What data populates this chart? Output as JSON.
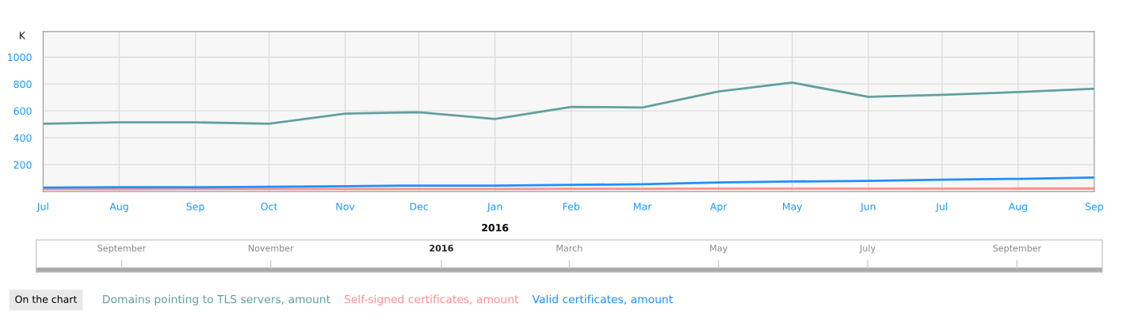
{
  "chart_data": {
    "type": "line",
    "ylabel": "K",
    "x": [
      "2015-07",
      "2015-08",
      "2015-09",
      "2015-10",
      "2015-11",
      "2015-12",
      "2016-01",
      "2016-02",
      "2016-03",
      "2016-04",
      "2016-05",
      "2016-06",
      "2016-07",
      "2016-08",
      "2016-09"
    ],
    "series": [
      {
        "name": "Domains pointing to TLS servers, amount",
        "color": "#62a0a0",
        "values": [
          505,
          515,
          515,
          505,
          580,
          590,
          540,
          630,
          625,
          745,
          810,
          705,
          720,
          740,
          765
        ]
      },
      {
        "name": "Self-signed certificates, amount",
        "color": "#ff8f8f",
        "values": [
          18,
          18,
          19,
          19,
          20,
          20,
          20,
          21,
          21,
          22,
          22,
          22,
          22,
          23,
          23
        ]
      },
      {
        "name": "Valid certificates, amount",
        "color": "#1e90ff",
        "values": [
          30,
          32,
          33,
          35,
          40,
          45,
          45,
          50,
          55,
          68,
          75,
          80,
          88,
          95,
          105
        ]
      }
    ],
    "xlim": [
      "2015-07",
      "2016-09"
    ],
    "xticks": [
      {
        "value": "2015-07",
        "label": "Jul"
      },
      {
        "value": "2015-08",
        "label": "Aug"
      },
      {
        "value": "2015-09",
        "label": "Sep"
      },
      {
        "value": "2015-10",
        "label": "Oct"
      },
      {
        "value": "2015-11",
        "label": "Nov"
      },
      {
        "value": "2015-12",
        "label": "Dec"
      },
      {
        "value": "2016-01",
        "label": "Jan"
      },
      {
        "value": "2016-02",
        "label": "Feb"
      },
      {
        "value": "2016-03",
        "label": "Mar"
      },
      {
        "value": "2016-04",
        "label": "Apr"
      },
      {
        "value": "2016-05",
        "label": "May"
      },
      {
        "value": "2016-06",
        "label": "Jun"
      },
      {
        "value": "2016-07",
        "label": "Jul"
      },
      {
        "value": "2016-08",
        "label": "Aug"
      },
      {
        "value": "2016-09",
        "label": "Sep"
      }
    ],
    "ylim": [
      0,
      1190
    ],
    "yticks": [
      200,
      400,
      600,
      800,
      1000
    ],
    "grid": true,
    "legend": "bottom",
    "legend_title": "On the chart",
    "marker": "none",
    "line_style": "solid",
    "annotations": [
      "2016",
      "September",
      "November",
      "2016",
      "March",
      "May",
      "July",
      "September"
    ]
  }
}
